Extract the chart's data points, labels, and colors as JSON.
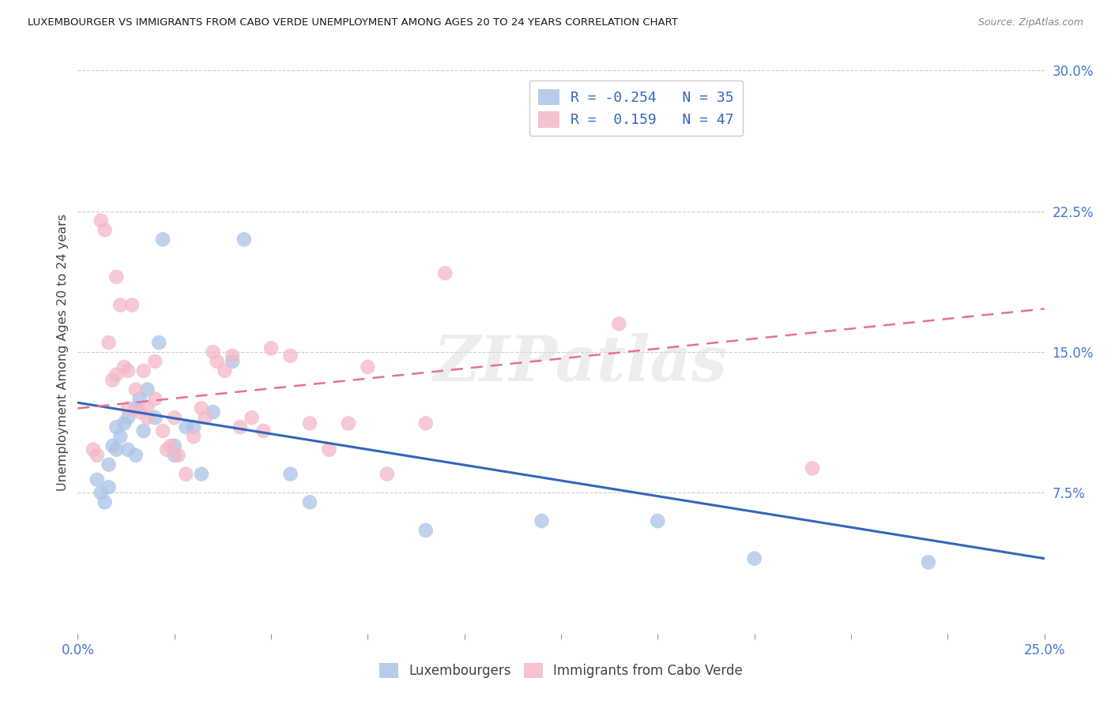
{
  "title": "LUXEMBOURGER VS IMMIGRANTS FROM CABO VERDE UNEMPLOYMENT AMONG AGES 20 TO 24 YEARS CORRELATION CHART",
  "source": "Source: ZipAtlas.com",
  "ylabel": "Unemployment Among Ages 20 to 24 years",
  "xlim": [
    0.0,
    0.25
  ],
  "ylim": [
    0.0,
    0.3
  ],
  "yticks_right": [
    0.075,
    0.15,
    0.225,
    0.3
  ],
  "ytick_labels_right": [
    "7.5%",
    "15.0%",
    "22.5%",
    "30.0%"
  ],
  "xticks": [
    0.0,
    0.025,
    0.05,
    0.075,
    0.1,
    0.125,
    0.15,
    0.175,
    0.2,
    0.225,
    0.25
  ],
  "color_blue": "#aac4e8",
  "color_pink": "#f4b8c8",
  "line_color_blue": "#3366bb",
  "line_color_pink": "#e87090",
  "R_blue": -0.254,
  "N_blue": 35,
  "R_pink": 0.159,
  "N_pink": 47,
  "blue_x": [
    0.005,
    0.006,
    0.007,
    0.008,
    0.008,
    0.009,
    0.01,
    0.01,
    0.011,
    0.012,
    0.013,
    0.013,
    0.015,
    0.015,
    0.016,
    0.017,
    0.018,
    0.02,
    0.021,
    0.022,
    0.025,
    0.025,
    0.028,
    0.03,
    0.032,
    0.035,
    0.04,
    0.043,
    0.055,
    0.06,
    0.09,
    0.12,
    0.15,
    0.175,
    0.22
  ],
  "blue_y": [
    0.082,
    0.075,
    0.07,
    0.078,
    0.09,
    0.1,
    0.098,
    0.11,
    0.105,
    0.112,
    0.115,
    0.098,
    0.12,
    0.095,
    0.125,
    0.108,
    0.13,
    0.115,
    0.155,
    0.21,
    0.1,
    0.095,
    0.11,
    0.11,
    0.085,
    0.118,
    0.145,
    0.21,
    0.085,
    0.07,
    0.055,
    0.06,
    0.06,
    0.04,
    0.038
  ],
  "pink_x": [
    0.004,
    0.005,
    0.006,
    0.007,
    0.008,
    0.009,
    0.01,
    0.01,
    0.011,
    0.012,
    0.013,
    0.013,
    0.014,
    0.015,
    0.016,
    0.017,
    0.018,
    0.018,
    0.02,
    0.02,
    0.022,
    0.023,
    0.024,
    0.025,
    0.026,
    0.028,
    0.03,
    0.032,
    0.033,
    0.035,
    0.036,
    0.038,
    0.04,
    0.042,
    0.045,
    0.048,
    0.05,
    0.055,
    0.06,
    0.065,
    0.07,
    0.075,
    0.08,
    0.09,
    0.095,
    0.14,
    0.19
  ],
  "pink_y": [
    0.098,
    0.095,
    0.22,
    0.215,
    0.155,
    0.135,
    0.138,
    0.19,
    0.175,
    0.142,
    0.14,
    0.12,
    0.175,
    0.13,
    0.118,
    0.14,
    0.115,
    0.12,
    0.125,
    0.145,
    0.108,
    0.098,
    0.1,
    0.115,
    0.095,
    0.085,
    0.105,
    0.12,
    0.115,
    0.15,
    0.145,
    0.14,
    0.148,
    0.11,
    0.115,
    0.108,
    0.152,
    0.148,
    0.112,
    0.098,
    0.112,
    0.142,
    0.085,
    0.112,
    0.192,
    0.165,
    0.088
  ],
  "blue_trend": [
    0.123,
    0.04
  ],
  "pink_trend": [
    0.12,
    0.173
  ],
  "watermark": "ZIPatlas",
  "background_color": "#ffffff",
  "grid_color": "#cccccc",
  "legend_text_color": "#3366bb",
  "axis_tick_color": "#4477cc"
}
